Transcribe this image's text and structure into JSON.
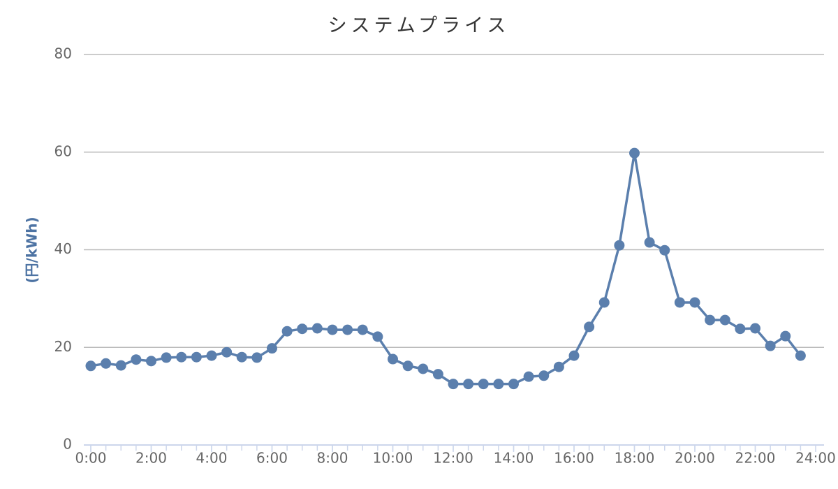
{
  "chart_data": {
    "type": "line",
    "title": "システムプライス",
    "y_label": "(円/kWh)",
    "x": [
      0,
      0.5,
      1,
      1.5,
      2,
      2.5,
      3,
      3.5,
      4,
      4.5,
      5,
      5.5,
      6,
      6.5,
      7,
      7.5,
      8,
      8.5,
      9,
      9.5,
      10,
      10.5,
      11,
      11.5,
      12,
      12.5,
      13,
      13.5,
      14,
      14.5,
      15,
      15.5,
      16,
      16.5,
      17,
      17.5,
      18,
      18.5,
      19,
      19.5,
      20,
      20.5,
      21,
      21.5,
      22,
      22.5,
      23,
      23.5
    ],
    "series": [
      {
        "color": "#5b7fad",
        "values": [
          16.2,
          16.7,
          16.3,
          17.5,
          17.2,
          17.9,
          18.0,
          18.0,
          18.3,
          19.0,
          18.0,
          17.9,
          19.8,
          23.3,
          23.8,
          23.9,
          23.6,
          23.6,
          23.6,
          22.2,
          17.6,
          16.2,
          15.6,
          14.5,
          12.5,
          12.5,
          12.5,
          12.5,
          12.5,
          14.0,
          14.2,
          16.0,
          18.3,
          24.2,
          29.2,
          40.9,
          59.8,
          41.5,
          39.9,
          29.2,
          29.2,
          25.6,
          25.6,
          23.8,
          23.9,
          20.3,
          22.3,
          18.3
        ]
      }
    ],
    "xlim": [
      0,
      24
    ],
    "xticks": [
      {
        "value": 0,
        "label": "0:00"
      },
      {
        "value": 2,
        "label": "2:00"
      },
      {
        "value": 4,
        "label": "4:00"
      },
      {
        "value": 6,
        "label": "6:00"
      },
      {
        "value": 8,
        "label": "8:00"
      },
      {
        "value": 10,
        "label": "10:00"
      },
      {
        "value": 12,
        "label": "12:00"
      },
      {
        "value": 14,
        "label": "14:00"
      },
      {
        "value": 16,
        "label": "16:00"
      },
      {
        "value": 18,
        "label": "18:00"
      },
      {
        "value": 20,
        "label": "20:00"
      },
      {
        "value": 22,
        "label": "22:00"
      },
      {
        "value": 24,
        "label": "24:00"
      }
    ],
    "ylim": [
      0,
      80
    ],
    "yticks": [
      0,
      20,
      40,
      60,
      80
    ],
    "grid": true
  }
}
